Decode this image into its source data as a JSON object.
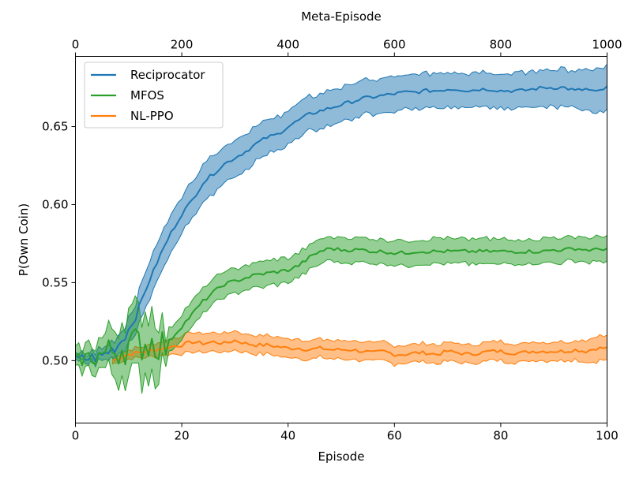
{
  "chart_data": {
    "type": "line",
    "title": "",
    "xlabel": "Episode",
    "x2label": "Meta-Episode",
    "ylabel": "P(Own Coin)",
    "xlim": [
      0,
      100
    ],
    "x2lim": [
      0,
      1000
    ],
    "ylim": [
      0.46,
      0.695
    ],
    "grid": false,
    "legend_position": "top-left",
    "x_ticks": [
      "0",
      "20",
      "40",
      "60",
      "80",
      "100"
    ],
    "x_tick_values": [
      0,
      20,
      40,
      60,
      80,
      100
    ],
    "x2_ticks": [
      "0",
      "200",
      "400",
      "600",
      "800",
      "1000"
    ],
    "x2_tick_values": [
      0,
      200,
      400,
      600,
      800,
      1000
    ],
    "y_ticks": [
      "0.50",
      "0.55",
      "0.60",
      "0.65"
    ],
    "y_tick_values": [
      0.5,
      0.55,
      0.6,
      0.65
    ],
    "series": [
      {
        "name": "Reciprocator",
        "color": "#1f77b4",
        "x": [
          0,
          5,
          8,
          10,
          12,
          14,
          16,
          18,
          20,
          22,
          24,
          26,
          28,
          30,
          32,
          34,
          36,
          38,
          40,
          42,
          44,
          46,
          48,
          50,
          52,
          54,
          56,
          58,
          60,
          62,
          64,
          66,
          68,
          70,
          72,
          74,
          76,
          78,
          80,
          82,
          84,
          86,
          88,
          90,
          92,
          94,
          96,
          98,
          100
        ],
        "y": [
          0.5,
          0.503,
          0.51,
          0.52,
          0.535,
          0.552,
          0.568,
          0.582,
          0.594,
          0.603,
          0.614,
          0.62,
          0.626,
          0.63,
          0.634,
          0.639,
          0.643,
          0.645,
          0.65,
          0.654,
          0.658,
          0.66,
          0.662,
          0.664,
          0.666,
          0.668,
          0.669,
          0.67,
          0.671,
          0.672,
          0.672,
          0.673,
          0.673,
          0.674,
          0.674,
          0.673,
          0.674,
          0.674,
          0.673,
          0.673,
          0.673,
          0.674,
          0.675,
          0.675,
          0.675,
          0.673,
          0.674,
          0.672,
          0.675
        ],
        "band": [
          0.002,
          0.004,
          0.006,
          0.008,
          0.01,
          0.012,
          0.012,
          0.012,
          0.012,
          0.012,
          0.012,
          0.012,
          0.012,
          0.012,
          0.012,
          0.011,
          0.011,
          0.011,
          0.011,
          0.011,
          0.011,
          0.011,
          0.011,
          0.011,
          0.011,
          0.011,
          0.011,
          0.011,
          0.011,
          0.011,
          0.011,
          0.011,
          0.011,
          0.011,
          0.011,
          0.011,
          0.011,
          0.011,
          0.011,
          0.011,
          0.011,
          0.011,
          0.012,
          0.012,
          0.012,
          0.012,
          0.013,
          0.014,
          0.014
        ]
      },
      {
        "name": "MFOS",
        "color": "#2ca02c",
        "x": [
          0,
          5,
          10,
          15,
          17,
          20,
          22,
          24,
          26,
          28,
          30,
          32,
          34,
          36,
          38,
          40,
          42,
          44,
          46,
          48,
          50,
          52,
          54,
          56,
          58,
          60,
          62,
          64,
          66,
          68,
          70,
          72,
          74,
          76,
          78,
          80,
          82,
          84,
          86,
          88,
          90,
          92,
          94,
          96,
          98,
          100
        ],
        "y": [
          0.5,
          0.504,
          0.51,
          0.512,
          0.51,
          0.522,
          0.53,
          0.538,
          0.544,
          0.549,
          0.551,
          0.553,
          0.555,
          0.556,
          0.557,
          0.558,
          0.561,
          0.566,
          0.57,
          0.572,
          0.571,
          0.571,
          0.571,
          0.57,
          0.57,
          0.569,
          0.569,
          0.57,
          0.57,
          0.57,
          0.57,
          0.57,
          0.57,
          0.57,
          0.57,
          0.57,
          0.57,
          0.57,
          0.57,
          0.57,
          0.571,
          0.571,
          0.572,
          0.571,
          0.571,
          0.572
        ],
        "band": [
          0.006,
          0.01,
          0.02,
          0.02,
          0.008,
          0.008,
          0.008,
          0.008,
          0.008,
          0.008,
          0.008,
          0.008,
          0.008,
          0.008,
          0.008,
          0.008,
          0.008,
          0.008,
          0.008,
          0.008,
          0.008,
          0.008,
          0.008,
          0.008,
          0.008,
          0.008,
          0.008,
          0.008,
          0.008,
          0.008,
          0.008,
          0.008,
          0.008,
          0.008,
          0.008,
          0.008,
          0.008,
          0.008,
          0.008,
          0.008,
          0.008,
          0.008,
          0.008,
          0.008,
          0.008,
          0.008
        ]
      },
      {
        "name": "NL-PPO",
        "color": "#ff7f0e",
        "x": [
          7,
          10,
          15,
          18,
          20,
          22,
          24,
          26,
          28,
          30,
          32,
          34,
          36,
          38,
          40,
          42,
          44,
          46,
          48,
          50,
          52,
          54,
          56,
          58,
          60,
          62,
          64,
          66,
          68,
          70,
          72,
          74,
          76,
          78,
          80,
          82,
          84,
          86,
          88,
          90,
          92,
          94,
          96,
          98,
          100
        ],
        "y": [
          0.5,
          0.504,
          0.507,
          0.509,
          0.51,
          0.512,
          0.511,
          0.512,
          0.511,
          0.513,
          0.511,
          0.51,
          0.51,
          0.509,
          0.508,
          0.508,
          0.507,
          0.508,
          0.507,
          0.507,
          0.507,
          0.506,
          0.505,
          0.506,
          0.504,
          0.504,
          0.505,
          0.505,
          0.504,
          0.506,
          0.505,
          0.504,
          0.505,
          0.506,
          0.506,
          0.505,
          0.505,
          0.506,
          0.506,
          0.506,
          0.506,
          0.507,
          0.506,
          0.508,
          0.508
        ],
        "band": [
          0.002,
          0.003,
          0.004,
          0.005,
          0.006,
          0.006,
          0.006,
          0.006,
          0.006,
          0.006,
          0.006,
          0.006,
          0.006,
          0.006,
          0.006,
          0.006,
          0.006,
          0.006,
          0.006,
          0.006,
          0.006,
          0.006,
          0.006,
          0.006,
          0.006,
          0.006,
          0.006,
          0.006,
          0.006,
          0.006,
          0.006,
          0.006,
          0.006,
          0.006,
          0.006,
          0.006,
          0.006,
          0.006,
          0.006,
          0.006,
          0.006,
          0.006,
          0.007,
          0.008,
          0.008
        ]
      }
    ]
  }
}
